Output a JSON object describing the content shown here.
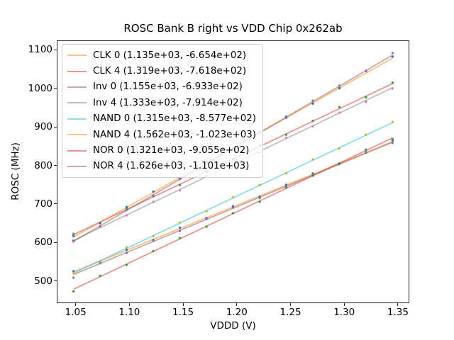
{
  "figure": {
    "title": "ROSC Bank B right vs VDD Chip 0x262ab"
  },
  "axes": {
    "xlabel": "VDDD (V)",
    "ylabel": "ROSC (MHz)",
    "xlim": [
      1.0324,
      1.3606
    ],
    "ylim": [
      443,
      1124
    ],
    "grid": false,
    "xticks": [
      {
        "v": 1.05,
        "label": "1.05"
      },
      {
        "v": 1.1,
        "label": "1.10"
      },
      {
        "v": 1.15,
        "label": "1.15"
      },
      {
        "v": 1.2,
        "label": "1.20"
      },
      {
        "v": 1.25,
        "label": "1.25"
      },
      {
        "v": 1.3,
        "label": "1.30"
      },
      {
        "v": 1.35,
        "label": "1.35"
      }
    ],
    "yticks": [
      {
        "v": 500,
        "label": "500"
      },
      {
        "v": 600,
        "label": "600"
      },
      {
        "v": 700,
        "label": "700"
      },
      {
        "v": 800,
        "label": "800"
      },
      {
        "v": 900,
        "label": "900"
      },
      {
        "v": 1000,
        "label": "1000"
      },
      {
        "v": 1100,
        "label": "1100"
      }
    ]
  },
  "legend": {
    "position": "upper-left",
    "border_color": "#cccccc"
  },
  "chart_data": {
    "type": "scatter",
    "title": "ROSC Bank B right vs VDD Chip 0x262ab",
    "xlabel": "VDDD (V)",
    "ylabel": "ROSC (MHz)",
    "x": [
      1.048,
      1.0728,
      1.0975,
      1.1223,
      1.147,
      1.1718,
      1.1965,
      1.2213,
      1.246,
      1.2708,
      1.2955,
      1.3203,
      1.345
    ],
    "series": [
      {
        "name": "CLK 0",
        "legend_label": "CLK 0 (1.135e+03, -6.654e+02)",
        "fit_slope": 1135.0,
        "fit_intercept": -665.4,
        "line_color": "#ff7f0e",
        "marker_color": "#1f77b4",
        "y": [
          525.6,
          550.2,
          581.3,
          606.9,
          638.4,
          663.6,
          694.1,
          718.8,
          749.8,
          779.0,
          803.5,
          834.1,
          864.2
        ]
      },
      {
        "name": "CLK 4",
        "legend_label": "CLK 4 (1.319e+03, -7.618e+02)",
        "fit_slope": 1319.0,
        "fit_intercept": -761.8,
        "line_color": "#d62728",
        "marker_color": "#2ca02c",
        "y": [
          622.5,
          650.2,
          686.8,
          720.5,
          749.1,
          784.8,
          815.4,
          852.1,
          879.7,
          915.4,
          951.0,
          976.7,
          1014.4
        ]
      },
      {
        "name": "Inv 0",
        "legend_label": "Inv 0 (1.155e+03, -6.933e+02)",
        "fit_slope": 1155.0,
        "fit_intercept": -693.3,
        "line_color": "#8c564b",
        "marker_color": "#9467bd",
        "y": [
          509.0,
          546.8,
          573.3,
          605.0,
          630.0,
          661.1,
          690.7,
          715.3,
          746.8,
          773.5,
          805.0,
          832.6,
          858.1
        ]
      },
      {
        "name": "Inv 4",
        "legend_label": "Inv 4 (1.333e+03, -7.914e+02)",
        "fit_slope": 1333.0,
        "fit_intercept": -791.4,
        "line_color": "#7f7f7f",
        "marker_color": "#e377c2",
        "y": [
          602.6,
          640.6,
          670.6,
          705.6,
          735.5,
          772.6,
          804.5,
          833.6,
          871.5,
          901.6,
          936.5,
          964.6,
          999.5
        ]
      },
      {
        "name": "NAND 0",
        "legend_label": "NAND 0 (1.315e+03, -8.577e+02)",
        "fit_slope": 1315.0,
        "fit_intercept": -857.7,
        "line_color": "#17becf",
        "marker_color": "#bcbd22",
        "y": [
          521.4,
          551.0,
          587.5,
          617.1,
          651.6,
          681.2,
          717.7,
          749.3,
          779.8,
          815.4,
          843.9,
          879.5,
          913.0
        ]
      },
      {
        "name": "NAND 4",
        "legend_label": "NAND 4 (1.562e+03, -1.023e+03)",
        "fit_slope": 1562.0,
        "fit_intercept": -1023.0,
        "line_color": "#ff7f0e",
        "marker_color": "#1f77b4",
        "y": [
          617.0,
          650.7,
          692.3,
          732.0,
          767.6,
          809.4,
          844.0,
          885.7,
          926.3,
          960.0,
          1000.0,
          1045.0,
          1081.9
        ]
      },
      {
        "name": "NOR 0",
        "legend_label": "NOR 0 (1.321e+03, -9.055e+02)",
        "fit_slope": 1321.0,
        "fit_intercept": -905.5,
        "line_color": "#d62728",
        "marker_color": "#2ca02c",
        "y": [
          473.5,
          513.7,
          542.3,
          578.1,
          611.7,
          641.4,
          676.1,
          705.8,
          742.5,
          774.3,
          804.9,
          840.7,
          868.3
        ]
      },
      {
        "name": "NOR 4",
        "legend_label": "NOR 4 (1.626e+03, -1.101e+03)",
        "fit_slope": 1626.0,
        "fit_intercept": -1101.0,
        "line_color": "#8c564b",
        "marker_color": "#9467bd",
        "y": [
          605.1,
          642.4,
          684.5,
          721.9,
          765.0,
          806.3,
          843.5,
          885.8,
          923.0,
          967.3,
          1006.5,
          1044.8,
          1091.1
        ]
      }
    ]
  }
}
